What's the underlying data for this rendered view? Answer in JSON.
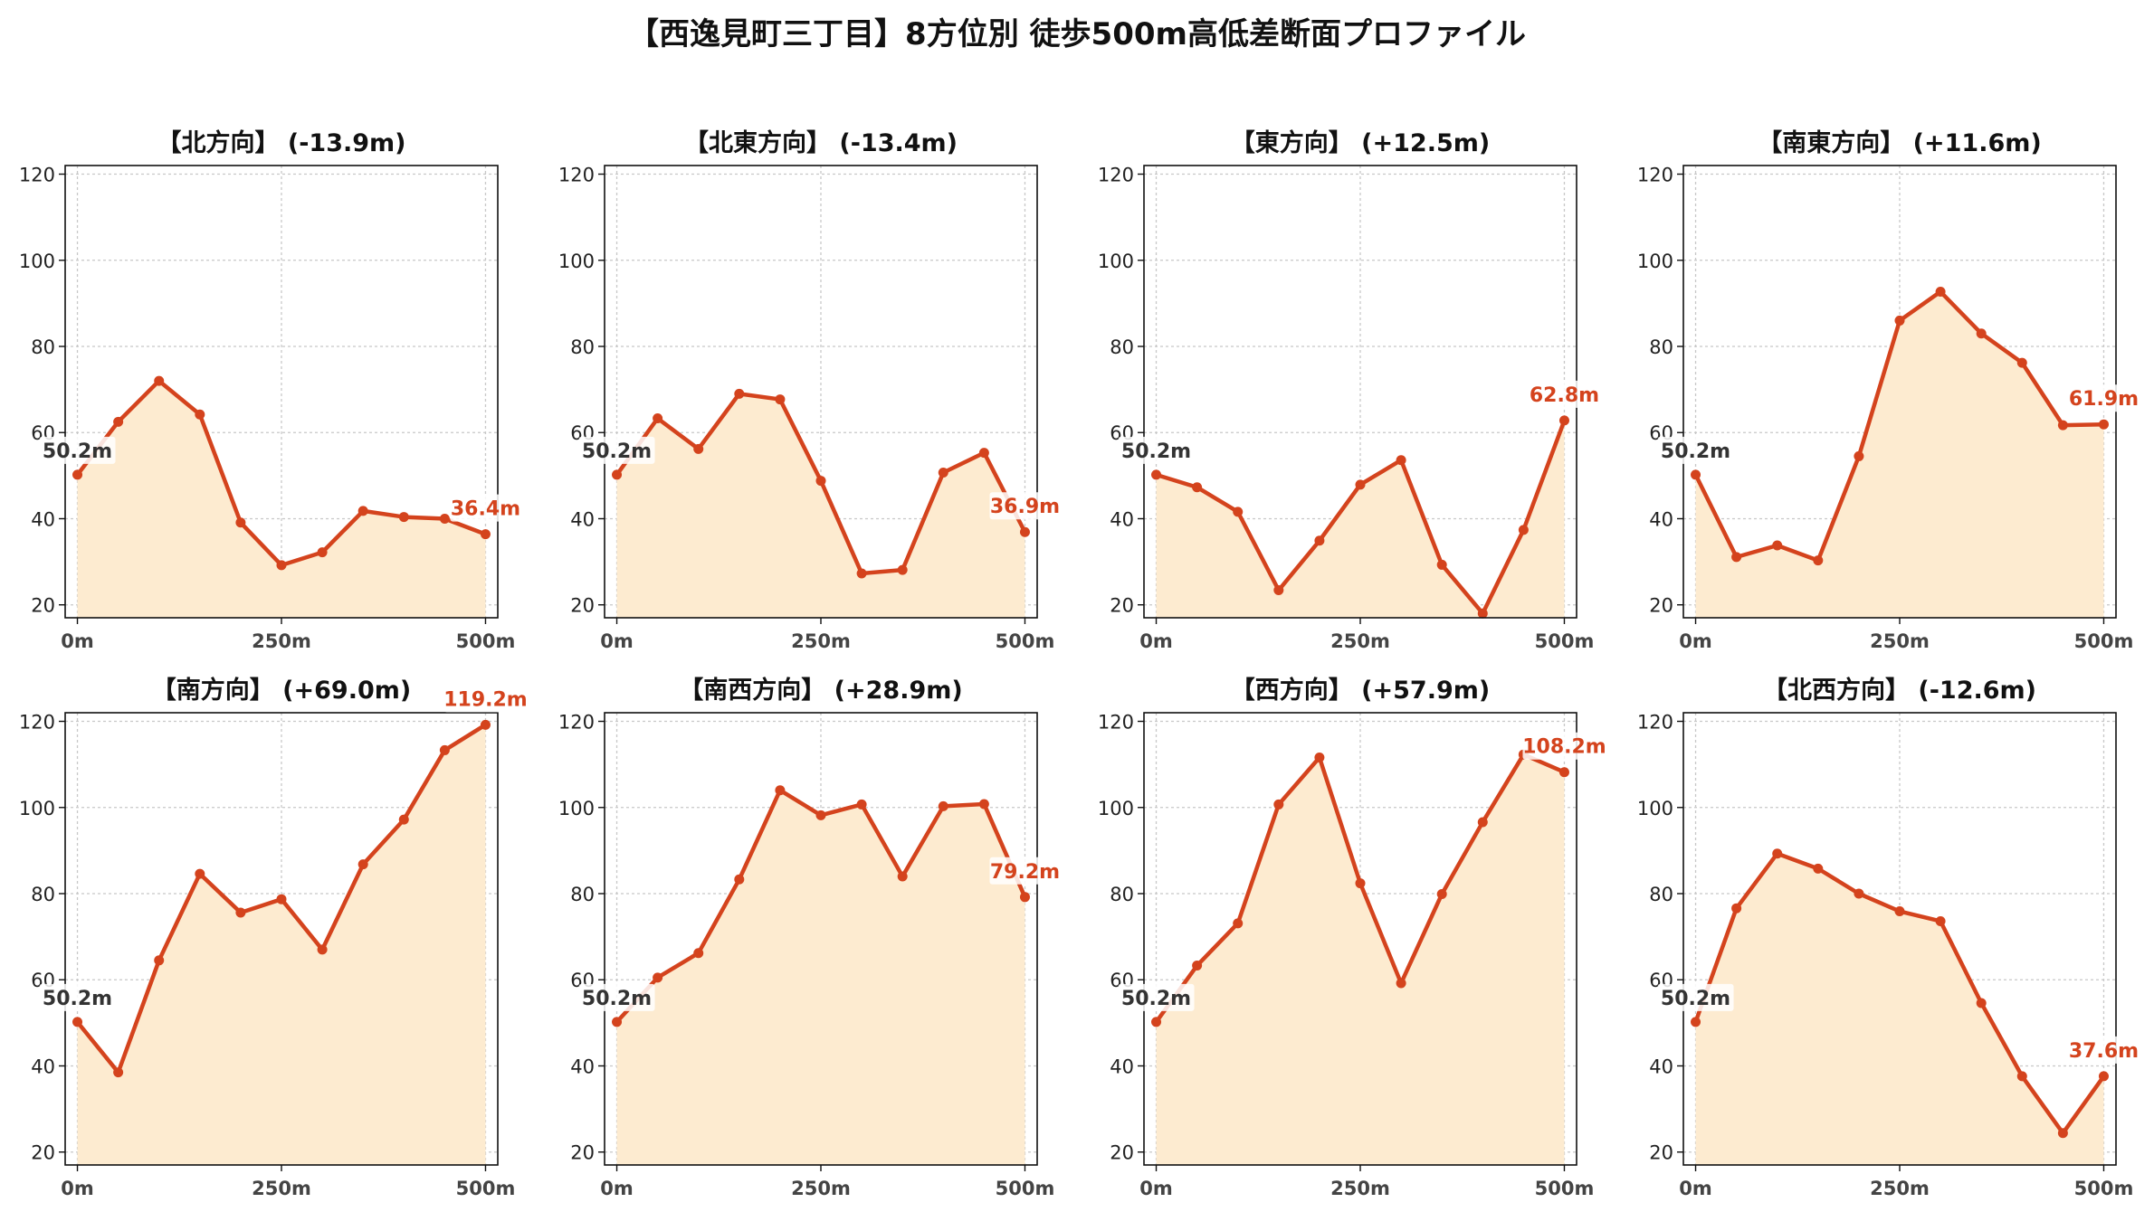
{
  "title": "【西逸見町三丁目】8方位別 徒歩500m高低差断面プロファイル",
  "colors": {
    "line": "#d4431d",
    "fill": "#fdebd0",
    "start_label": "#333333",
    "end_label": "#d4431d",
    "grid": "#c8c8c8"
  },
  "chart_data": [
    {
      "type": "area",
      "title": "【北方向】 (-13.9m)",
      "x": [
        0,
        50,
        100,
        150,
        200,
        250,
        300,
        350,
        400,
        450,
        500
      ],
      "y": [
        50.2,
        62.5,
        72.0,
        64.2,
        39.1,
        29.2,
        32.2,
        41.8,
        40.4,
        40.0,
        36.4
      ],
      "xticks": [
        "0m",
        "250m",
        "500m"
      ],
      "yticks": [
        20,
        40,
        60,
        80,
        100,
        120
      ],
      "ylim": [
        17,
        122
      ],
      "start_label": "50.2m",
      "end_label": "36.4m",
      "grid": true
    },
    {
      "type": "area",
      "title": "【北東方向】 (-13.4m)",
      "x": [
        0,
        50,
        100,
        150,
        200,
        250,
        300,
        350,
        400,
        450,
        500
      ],
      "y": [
        50.2,
        63.3,
        56.2,
        69.0,
        67.7,
        48.8,
        27.3,
        28.1,
        50.7,
        55.3,
        36.9
      ],
      "xticks": [
        "0m",
        "250m",
        "500m"
      ],
      "yticks": [
        20,
        40,
        60,
        80,
        100,
        120
      ],
      "ylim": [
        17,
        122
      ],
      "start_label": "50.2m",
      "end_label": "36.9m",
      "grid": true
    },
    {
      "type": "area",
      "title": "【東方向】 (+12.5m)",
      "x": [
        0,
        50,
        100,
        150,
        200,
        250,
        300,
        350,
        400,
        450,
        500
      ],
      "y": [
        50.2,
        47.3,
        41.6,
        23.4,
        34.9,
        47.9,
        53.6,
        29.3,
        18.0,
        37.4,
        62.8
      ],
      "xticks": [
        "0m",
        "250m",
        "500m"
      ],
      "yticks": [
        20,
        40,
        60,
        80,
        100,
        120
      ],
      "ylim": [
        17,
        122
      ],
      "start_label": "50.2m",
      "end_label": "62.8m",
      "grid": true
    },
    {
      "type": "area",
      "title": "【南東方向】 (+11.6m)",
      "x": [
        0,
        50,
        100,
        150,
        200,
        250,
        300,
        350,
        400,
        450,
        500
      ],
      "y": [
        50.2,
        31.1,
        33.8,
        30.3,
        54.5,
        86.0,
        92.7,
        83.0,
        76.2,
        61.7,
        61.9
      ],
      "xticks": [
        "0m",
        "250m",
        "500m"
      ],
      "yticks": [
        20,
        40,
        60,
        80,
        100,
        120
      ],
      "ylim": [
        17,
        122
      ],
      "start_label": "50.2m",
      "end_label": "61.9m",
      "grid": true
    },
    {
      "type": "area",
      "title": "【南方向】 (+69.0m)",
      "x": [
        0,
        50,
        100,
        150,
        200,
        250,
        300,
        350,
        400,
        450,
        500
      ],
      "y": [
        50.2,
        38.5,
        64.5,
        84.6,
        75.6,
        78.7,
        67.0,
        86.8,
        97.2,
        113.3,
        119.2
      ],
      "xticks": [
        "0m",
        "250m",
        "500m"
      ],
      "yticks": [
        20,
        40,
        60,
        80,
        100,
        120
      ],
      "ylim": [
        17,
        122
      ],
      "start_label": "50.2m",
      "end_label": "119.2m",
      "grid": true
    },
    {
      "type": "area",
      "title": "【南西方向】 (+28.9m)",
      "x": [
        0,
        50,
        100,
        150,
        200,
        250,
        300,
        350,
        400,
        450,
        500
      ],
      "y": [
        50.2,
        60.5,
        66.2,
        83.3,
        104.0,
        98.2,
        100.7,
        84.0,
        100.3,
        100.8,
        79.2
      ],
      "xticks": [
        "0m",
        "250m",
        "500m"
      ],
      "yticks": [
        20,
        40,
        60,
        80,
        100,
        120
      ],
      "ylim": [
        17,
        122
      ],
      "start_label": "50.2m",
      "end_label": "79.2m",
      "grid": true
    },
    {
      "type": "area",
      "title": "【西方向】 (+57.9m)",
      "x": [
        0,
        50,
        100,
        150,
        200,
        250,
        300,
        350,
        400,
        450,
        500
      ],
      "y": [
        50.2,
        63.3,
        73.1,
        100.7,
        111.6,
        82.4,
        59.2,
        79.9,
        96.6,
        112.3,
        108.2
      ],
      "xticks": [
        "0m",
        "250m",
        "500m"
      ],
      "yticks": [
        20,
        40,
        60,
        80,
        100,
        120
      ],
      "ylim": [
        17,
        122
      ],
      "start_label": "50.2m",
      "end_label": "108.2m",
      "grid": true
    },
    {
      "type": "area",
      "title": "【北西方向】 (-12.6m)",
      "x": [
        0,
        50,
        100,
        150,
        200,
        250,
        300,
        350,
        400,
        450,
        500
      ],
      "y": [
        50.2,
        76.6,
        89.3,
        85.8,
        80.0,
        75.9,
        73.6,
        54.6,
        37.6,
        24.4,
        37.6
      ],
      "xticks": [
        "0m",
        "250m",
        "500m"
      ],
      "yticks": [
        20,
        40,
        60,
        80,
        100,
        120
      ],
      "ylim": [
        17,
        122
      ],
      "start_label": "50.2m",
      "end_label": "37.6m",
      "grid": true
    }
  ]
}
